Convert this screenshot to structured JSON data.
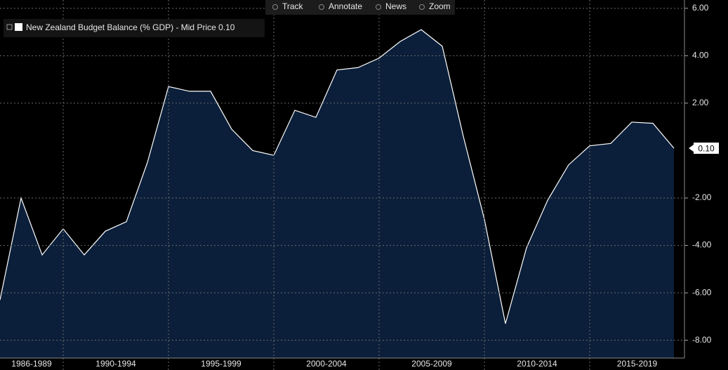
{
  "toolbar": [
    "Track",
    "Annotate",
    "News",
    "Zoom"
  ],
  "chart_data": {
    "type": "area",
    "legend": "New Zealand Budget Balance (% GDP) - Mid Price 0.10",
    "color": "#ffffff",
    "fill": "#0b1f3a",
    "x": [
      1987,
      1988,
      1989,
      1990,
      1991,
      1992,
      1993,
      1994,
      1995,
      1996,
      1997,
      1998,
      1999,
      2000,
      2001,
      2002,
      2003,
      2004,
      2005,
      2006,
      2007,
      2008,
      2009,
      2010,
      2011,
      2012,
      2013,
      2014,
      2015,
      2016,
      2017,
      2018,
      2019
    ],
    "values": [
      -6.3,
      -2.0,
      -4.4,
      -3.3,
      -4.4,
      -3.4,
      -3.0,
      -0.5,
      2.7,
      2.5,
      2.5,
      0.9,
      0.0,
      -0.2,
      1.7,
      1.4,
      3.4,
      3.5,
      3.9,
      4.6,
      5.1,
      4.4,
      0.6,
      -2.9,
      -7.3,
      -4.1,
      -2.1,
      -0.6,
      0.2,
      0.3,
      1.2,
      1.15,
      0.1
    ],
    "last_value_label": "0.10",
    "xlim": [
      1987,
      2019.5
    ],
    "ylim": [
      -8.75,
      6.35
    ],
    "yticks": [
      {
        "value": 6,
        "label": "6.00"
      },
      {
        "value": 4,
        "label": "4.00"
      },
      {
        "value": 2,
        "label": "2.00"
      },
      {
        "value": -2,
        "label": "-2.00"
      },
      {
        "value": -4,
        "label": "-4.00"
      },
      {
        "value": -6,
        "label": "-6.00"
      },
      {
        "value": -8,
        "label": "-8.00"
      }
    ],
    "xticks": [
      1990,
      1995,
      2000,
      2005,
      2010,
      2015
    ],
    "x_bands": [
      {
        "label": "1986-1989",
        "from": 1985,
        "to": 1990
      },
      {
        "label": "1990-1994",
        "from": 1990,
        "to": 1995
      },
      {
        "label": "1995-1999",
        "from": 1995,
        "to": 2000
      },
      {
        "label": "2000-2004",
        "from": 2000,
        "to": 2005
      },
      {
        "label": "2005-2009",
        "from": 2005,
        "to": 2010
      },
      {
        "label": "2010-2014",
        "from": 2010,
        "to": 2015
      },
      {
        "label": "2015-2019",
        "from": 2015,
        "to": 2020
      }
    ],
    "grid": true
  }
}
